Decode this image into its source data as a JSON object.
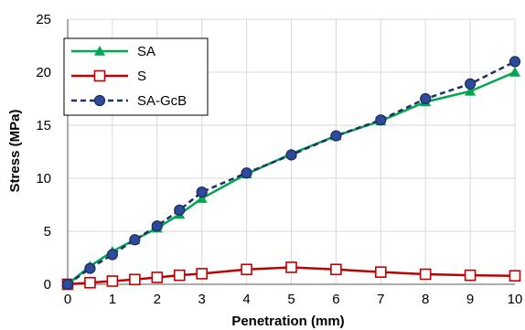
{
  "chart_data": {
    "type": "line",
    "title": "",
    "xlabel": "Penetration (mm)",
    "ylabel": "Stress (MPa)",
    "xlim": [
      0,
      10
    ],
    "ylim": [
      0,
      25
    ],
    "x_ticks": [
      "0",
      "1",
      "2",
      "3",
      "4",
      "5",
      "6",
      "7",
      "8",
      "9",
      "10"
    ],
    "y_ticks": [
      "0",
      "5",
      "10",
      "15",
      "20",
      "25"
    ],
    "grid": true,
    "legend_position": "top-left",
    "series": [
      {
        "name": "SA",
        "color": "#00a651",
        "marker": "triangle",
        "line_style": "solid",
        "x": [
          0,
          0.5,
          1,
          1.5,
          2,
          2.5,
          3,
          4,
          5,
          6,
          7,
          8,
          9,
          10
        ],
        "y": [
          0,
          1.7,
          3.1,
          4.2,
          5.3,
          6.6,
          8.1,
          10.4,
          12.3,
          14.0,
          15.4,
          17.2,
          18.2,
          20.0
        ]
      },
      {
        "name": "S",
        "color": "#c00000",
        "marker": "square-open",
        "line_style": "solid",
        "x": [
          0,
          0.5,
          1,
          1.5,
          2,
          2.5,
          3,
          4,
          5,
          6,
          7,
          8,
          9,
          10
        ],
        "y": [
          0,
          0.15,
          0.3,
          0.45,
          0.65,
          0.85,
          1.0,
          1.4,
          1.6,
          1.4,
          1.15,
          0.95,
          0.85,
          0.8
        ]
      },
      {
        "name": "SA-GcB",
        "color": "#1f2f6b",
        "marker": "circle",
        "line_style": "dashed",
        "x": [
          0,
          0.5,
          1,
          1.5,
          2,
          2.5,
          3,
          4,
          5,
          6,
          7,
          8,
          9,
          10
        ],
        "y": [
          0,
          1.5,
          2.8,
          4.2,
          5.5,
          7.0,
          8.7,
          10.5,
          12.2,
          14.0,
          15.5,
          17.5,
          18.9,
          21.0
        ]
      }
    ]
  }
}
